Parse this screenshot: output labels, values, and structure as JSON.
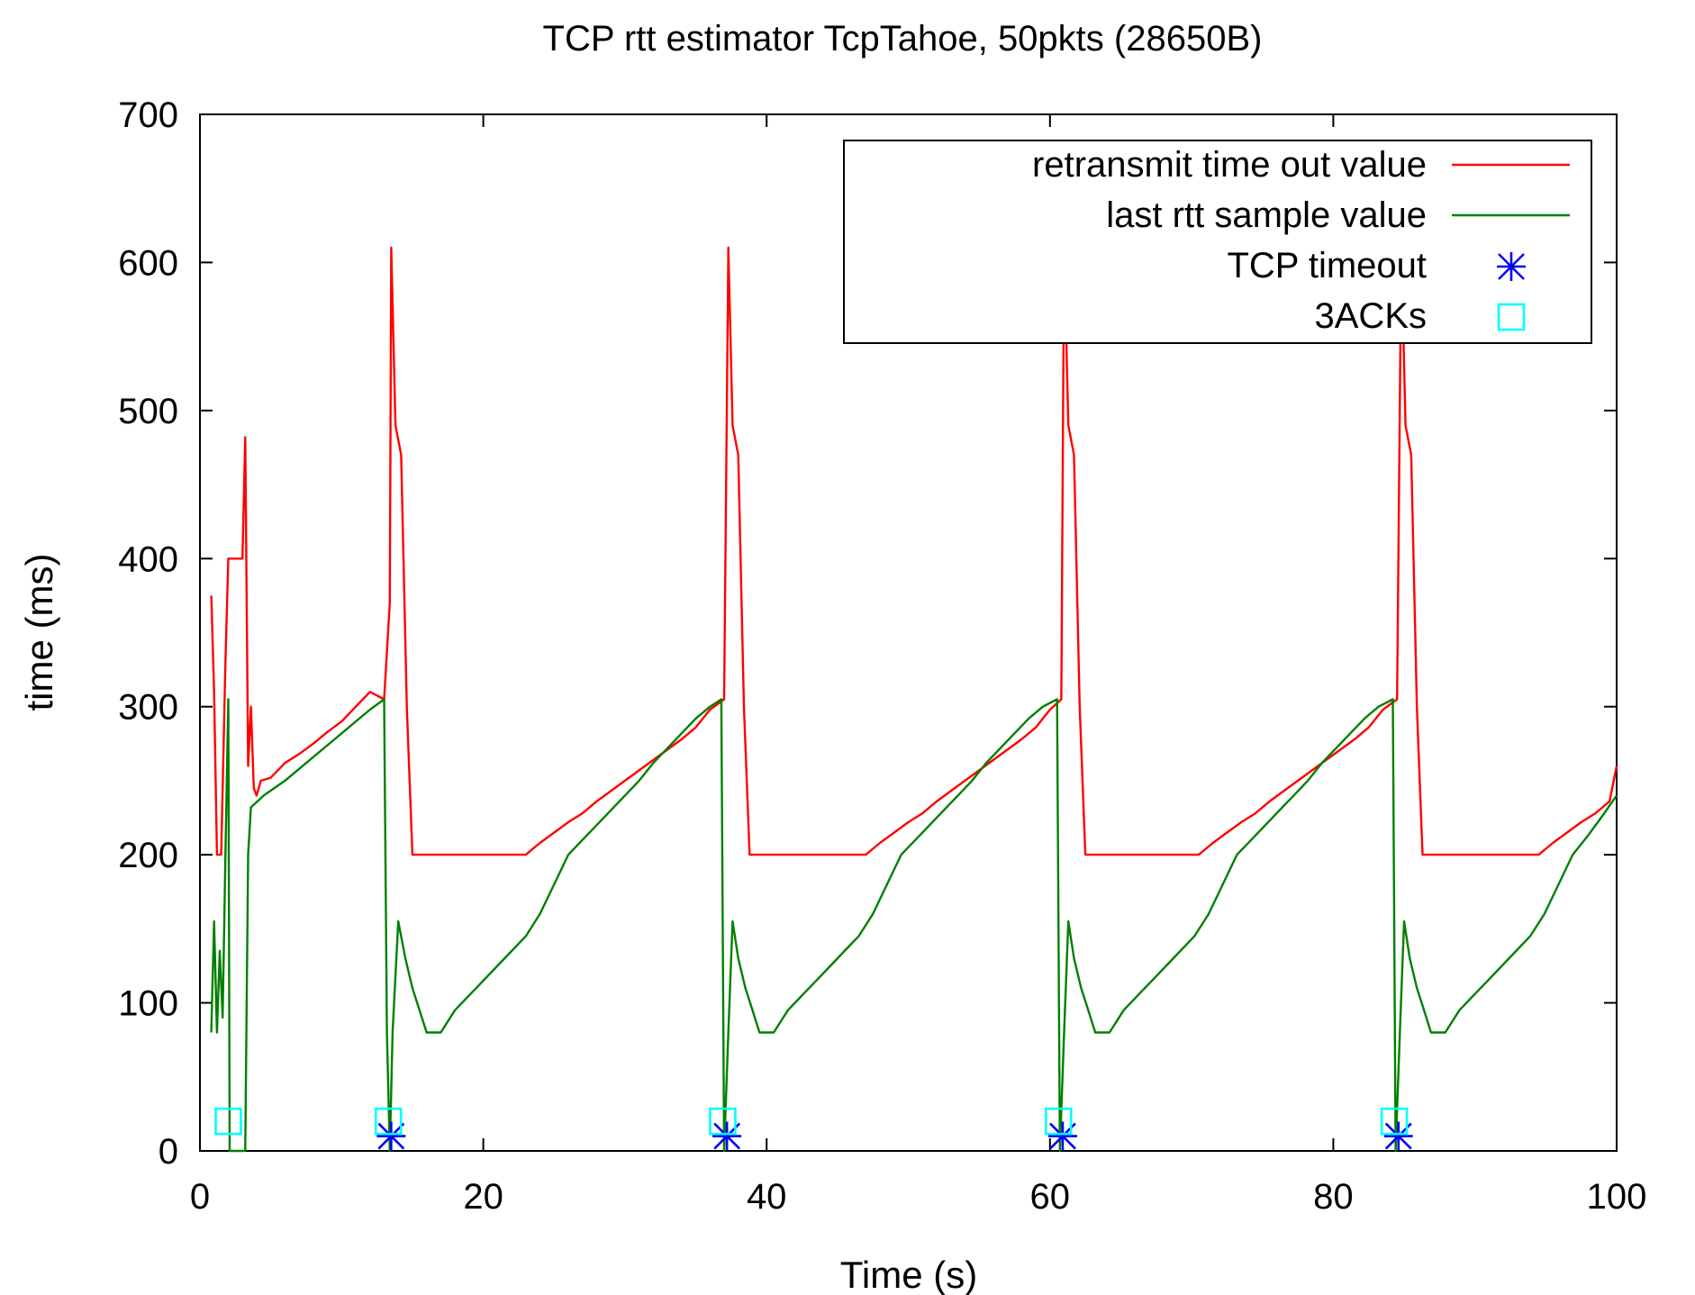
{
  "chart_data": {
    "type": "line",
    "title": "TCP rtt estimator TcpTahoe, 50pkts (28650B)",
    "xlabel": "Time (s)",
    "ylabel": "time (ms)",
    "xlim": [
      0,
      100
    ],
    "ylim": [
      0,
      700
    ],
    "xticks": [
      0,
      20,
      40,
      60,
      80,
      100
    ],
    "yticks": [
      0,
      100,
      200,
      300,
      400,
      500,
      600,
      700
    ],
    "grid": false,
    "legend_position": "top-right",
    "series": [
      {
        "name": "retransmit time out value",
        "color": "#ff0000",
        "style": "line",
        "points": [
          [
            0.8,
            375
          ],
          [
            1.0,
            310
          ],
          [
            1.2,
            200
          ],
          [
            1.5,
            200
          ],
          [
            1.8,
            330
          ],
          [
            2.0,
            400
          ],
          [
            3.0,
            400
          ],
          [
            3.2,
            482
          ],
          [
            3.4,
            260
          ],
          [
            3.6,
            300
          ],
          [
            3.8,
            245
          ],
          [
            4.0,
            240
          ],
          [
            4.3,
            250
          ],
          [
            5.0,
            252
          ],
          [
            6.0,
            262
          ],
          [
            7.0,
            268
          ],
          [
            8.0,
            275
          ],
          [
            9.0,
            283
          ],
          [
            10.0,
            290
          ],
          [
            11.0,
            300
          ],
          [
            12.0,
            310
          ],
          [
            13.0,
            305
          ],
          [
            13.4,
            370
          ],
          [
            13.5,
            610
          ],
          [
            13.8,
            490
          ],
          [
            14.2,
            470
          ],
          [
            14.6,
            300
          ],
          [
            15.0,
            200
          ],
          [
            23.0,
            200
          ],
          [
            24.0,
            208
          ],
          [
            25.0,
            215
          ],
          [
            26.0,
            222
          ],
          [
            27.0,
            228
          ],
          [
            28.0,
            236
          ],
          [
            29.0,
            243
          ],
          [
            30.0,
            250
          ],
          [
            31.0,
            257
          ],
          [
            32.0,
            264
          ],
          [
            33.0,
            271
          ],
          [
            34.0,
            278
          ],
          [
            35.0,
            286
          ],
          [
            36.0,
            298
          ],
          [
            37.0,
            305
          ],
          [
            37.3,
            610
          ],
          [
            37.6,
            490
          ],
          [
            38.0,
            470
          ],
          [
            38.4,
            300
          ],
          [
            38.8,
            200
          ],
          [
            47.0,
            200
          ],
          [
            48.0,
            208
          ],
          [
            49.0,
            215
          ],
          [
            50.0,
            222
          ],
          [
            51.0,
            228
          ],
          [
            52.0,
            236
          ],
          [
            53.0,
            243
          ],
          [
            54.0,
            250
          ],
          [
            55.0,
            257
          ],
          [
            56.0,
            264
          ],
          [
            57.0,
            271
          ],
          [
            58.0,
            278
          ],
          [
            59.0,
            286
          ],
          [
            60.0,
            298
          ],
          [
            60.8,
            305
          ],
          [
            61.0,
            610
          ],
          [
            61.3,
            490
          ],
          [
            61.7,
            470
          ],
          [
            62.1,
            300
          ],
          [
            62.5,
            200
          ],
          [
            70.5,
            200
          ],
          [
            71.5,
            208
          ],
          [
            72.5,
            215
          ],
          [
            73.5,
            222
          ],
          [
            74.5,
            228
          ],
          [
            75.5,
            236
          ],
          [
            76.5,
            243
          ],
          [
            77.5,
            250
          ],
          [
            78.5,
            257
          ],
          [
            79.5,
            264
          ],
          [
            80.5,
            271
          ],
          [
            81.5,
            278
          ],
          [
            82.5,
            286
          ],
          [
            83.5,
            298
          ],
          [
            84.5,
            305
          ],
          [
            84.8,
            610
          ],
          [
            85.1,
            490
          ],
          [
            85.5,
            470
          ],
          [
            85.9,
            300
          ],
          [
            86.3,
            200
          ],
          [
            94.5,
            200
          ],
          [
            95.5,
            208
          ],
          [
            96.5,
            215
          ],
          [
            97.5,
            222
          ],
          [
            98.5,
            228
          ],
          [
            99.5,
            236
          ],
          [
            100.0,
            260
          ]
        ]
      },
      {
        "name": "last rtt sample value",
        "color": "#008000",
        "style": "line",
        "points": [
          [
            0.8,
            80
          ],
          [
            1.0,
            155
          ],
          [
            1.2,
            80
          ],
          [
            1.4,
            135
          ],
          [
            1.6,
            90
          ],
          [
            1.8,
            200
          ],
          [
            2.0,
            305
          ],
          [
            2.1,
            0
          ],
          [
            3.2,
            0
          ],
          [
            3.4,
            200
          ],
          [
            3.6,
            232
          ],
          [
            4.5,
            240
          ],
          [
            6.0,
            250
          ],
          [
            7.5,
            262
          ],
          [
            9.0,
            274
          ],
          [
            10.5,
            286
          ],
          [
            12.0,
            298
          ],
          [
            13.0,
            305
          ],
          [
            13.2,
            80
          ],
          [
            13.4,
            0
          ],
          [
            13.6,
            80
          ],
          [
            14.0,
            155
          ],
          [
            14.5,
            130
          ],
          [
            15.0,
            110
          ],
          [
            15.5,
            95
          ],
          [
            16.0,
            80
          ],
          [
            17.0,
            80
          ],
          [
            18.0,
            95
          ],
          [
            19.0,
            105
          ],
          [
            20.0,
            115
          ],
          [
            21.0,
            125
          ],
          [
            22.0,
            135
          ],
          [
            23.0,
            145
          ],
          [
            24.0,
            160
          ],
          [
            25.0,
            180
          ],
          [
            26.0,
            200
          ],
          [
            27.0,
            210
          ],
          [
            28.0,
            220
          ],
          [
            29.0,
            230
          ],
          [
            30.0,
            240
          ],
          [
            31.0,
            250
          ],
          [
            32.0,
            262
          ],
          [
            33.0,
            272
          ],
          [
            34.0,
            282
          ],
          [
            35.0,
            292
          ],
          [
            36.0,
            300
          ],
          [
            36.8,
            305
          ],
          [
            37.0,
            0
          ],
          [
            37.3,
            80
          ],
          [
            37.6,
            155
          ],
          [
            38.0,
            130
          ],
          [
            38.5,
            110
          ],
          [
            39.0,
            95
          ],
          [
            39.5,
            80
          ],
          [
            40.5,
            80
          ],
          [
            41.5,
            95
          ],
          [
            42.5,
            105
          ],
          [
            43.5,
            115
          ],
          [
            44.5,
            125
          ],
          [
            45.5,
            135
          ],
          [
            46.5,
            145
          ],
          [
            47.5,
            160
          ],
          [
            48.5,
            180
          ],
          [
            49.5,
            200
          ],
          [
            50.5,
            210
          ],
          [
            51.5,
            220
          ],
          [
            52.5,
            230
          ],
          [
            53.5,
            240
          ],
          [
            54.5,
            250
          ],
          [
            55.5,
            262
          ],
          [
            56.5,
            272
          ],
          [
            57.5,
            282
          ],
          [
            58.5,
            292
          ],
          [
            59.5,
            300
          ],
          [
            60.5,
            305
          ],
          [
            60.7,
            0
          ],
          [
            61.0,
            80
          ],
          [
            61.3,
            155
          ],
          [
            61.7,
            130
          ],
          [
            62.2,
            110
          ],
          [
            62.7,
            95
          ],
          [
            63.2,
            80
          ],
          [
            64.2,
            80
          ],
          [
            65.2,
            95
          ],
          [
            66.2,
            105
          ],
          [
            67.2,
            115
          ],
          [
            68.2,
            125
          ],
          [
            69.2,
            135
          ],
          [
            70.2,
            145
          ],
          [
            71.2,
            160
          ],
          [
            72.2,
            180
          ],
          [
            73.2,
            200
          ],
          [
            74.2,
            210
          ],
          [
            75.2,
            220
          ],
          [
            76.2,
            230
          ],
          [
            77.2,
            240
          ],
          [
            78.2,
            250
          ],
          [
            79.2,
            262
          ],
          [
            80.2,
            272
          ],
          [
            81.2,
            282
          ],
          [
            82.2,
            292
          ],
          [
            83.2,
            300
          ],
          [
            84.2,
            305
          ],
          [
            84.4,
            0
          ],
          [
            84.7,
            80
          ],
          [
            85.0,
            155
          ],
          [
            85.4,
            130
          ],
          [
            85.9,
            110
          ],
          [
            86.4,
            95
          ],
          [
            86.9,
            80
          ],
          [
            87.9,
            80
          ],
          [
            88.9,
            95
          ],
          [
            89.9,
            105
          ],
          [
            90.9,
            115
          ],
          [
            91.9,
            125
          ],
          [
            92.9,
            135
          ],
          [
            93.9,
            145
          ],
          [
            94.9,
            160
          ],
          [
            95.9,
            180
          ],
          [
            96.9,
            200
          ],
          [
            97.9,
            212
          ],
          [
            98.9,
            225
          ],
          [
            100.0,
            240
          ]
        ]
      },
      {
        "name": "TCP timeout",
        "color": "#0000ff",
        "style": "asterisk",
        "points": [
          [
            13.5,
            10
          ],
          [
            37.2,
            10
          ],
          [
            60.9,
            10
          ],
          [
            84.6,
            10
          ]
        ]
      },
      {
        "name": "3ACKs",
        "color": "#00ffff",
        "style": "square",
        "points": [
          [
            2.0,
            20
          ],
          [
            13.3,
            20
          ],
          [
            36.9,
            20
          ],
          [
            60.6,
            20
          ],
          [
            84.3,
            20
          ]
        ]
      }
    ]
  }
}
